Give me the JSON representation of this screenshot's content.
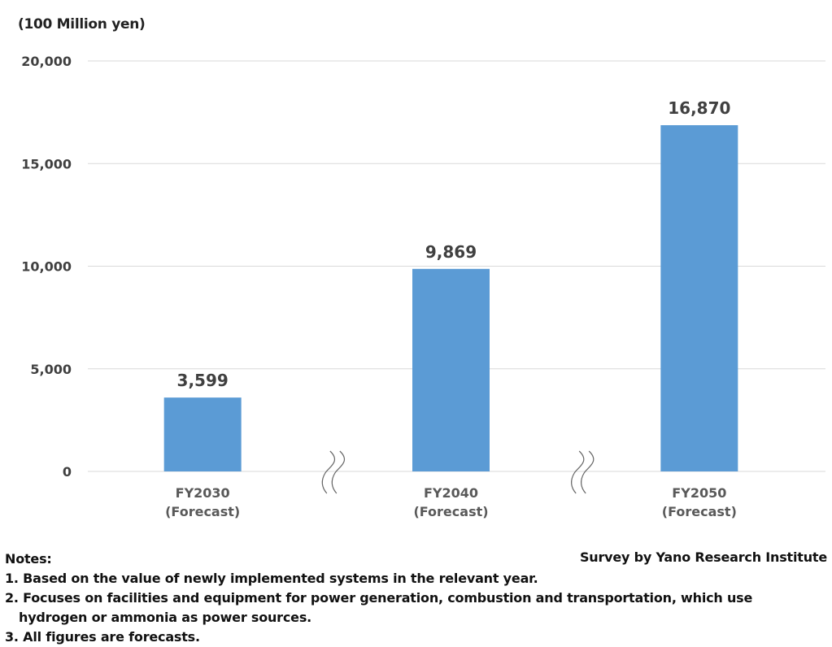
{
  "chart_data": {
    "type": "bar",
    "title": "",
    "ylabel": "(100 Million yen)",
    "xlabel": "",
    "categories": [
      [
        "FY2030",
        "(Forecast)"
      ],
      [
        "FY2040",
        "(Forecast)"
      ],
      [
        "FY2050",
        "(Forecast)"
      ]
    ],
    "values": [
      3599,
      9869,
      16870
    ],
    "value_labels": [
      "3,599",
      "9,869",
      "16,870"
    ],
    "ylim": [
      0,
      20000
    ],
    "yticks": [
      0,
      5000,
      10000,
      15000,
      20000
    ],
    "ytick_labels": [
      "0",
      "5,000",
      "10,000",
      "15,000",
      "20,000"
    ],
    "grid": "horizontal",
    "axis_breaks": "between categories",
    "bar_color": "#5b9bd5"
  },
  "notes": {
    "heading": "Notes:",
    "items": [
      "1. Based on the value of newly implemented systems in the relevant year.",
      "2. Focuses on facilities and equipment for power generation, combustion and transportation, which use",
      "hydrogen or ammonia as power sources.",
      "3. All figures are forecasts."
    ]
  },
  "source": "Survey by Yano Research Institute"
}
